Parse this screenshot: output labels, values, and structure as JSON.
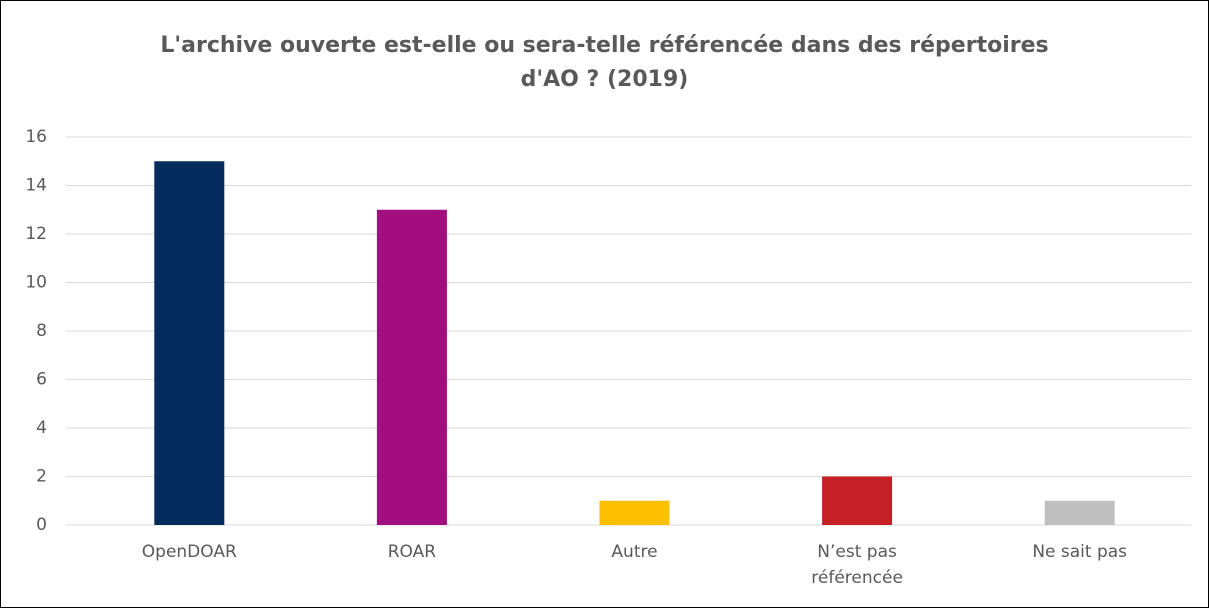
{
  "chart_data": {
    "type": "bar",
    "title": "L'archive ouverte est-elle ou sera-telle référencée dans des répertoires d'AO ? (2019)",
    "categories": [
      "OpenDOAR",
      "ROAR",
      "Autre",
      "N’est pas référencée",
      "Ne sait pas"
    ],
    "values": [
      15,
      13,
      1,
      2,
      1
    ],
    "colors": [
      "#042c5c",
      "#a20d80",
      "#fdc000",
      "#c42026",
      "#bfbfbf"
    ],
    "ylim": [
      0,
      16
    ],
    "yticks": [
      0,
      2,
      4,
      6,
      8,
      10,
      12,
      14,
      16
    ],
    "grid": true
  }
}
